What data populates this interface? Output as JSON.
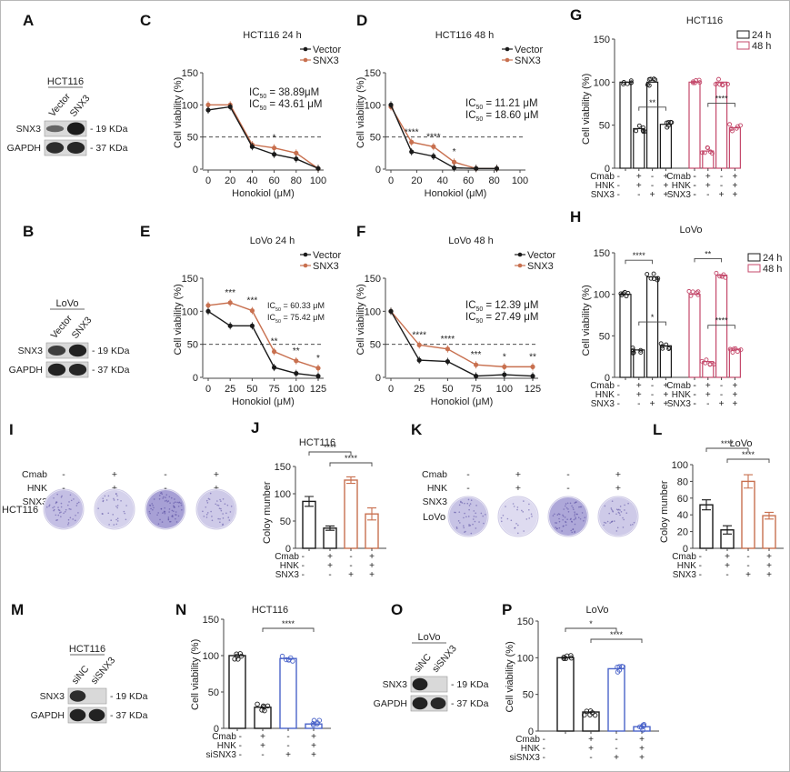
{
  "figure": {
    "colors": {
      "black": "#1a1a1a",
      "snx3_orange": "#c8704f",
      "h48_pink": "#c4496b",
      "si_blue": "#4a63c9",
      "band": "#1c1c1c",
      "blot_bg": "#d9d9d9",
      "colony_purple": "#7b71c0"
    },
    "panels": {
      "A": {
        "letter": "A",
        "cell": "HCT116",
        "lanes": [
          "Vector",
          "SNX3"
        ],
        "rows": [
          {
            "protein": "SNX3",
            "mw": "19 KDa",
            "intensity": [
              0.35,
              1.0
            ]
          },
          {
            "protein": "GAPDH",
            "mw": "37 KDa",
            "intensity": [
              0.85,
              0.9
            ]
          }
        ]
      },
      "B": {
        "letter": "B",
        "cell": "LoVo",
        "lanes": [
          "Vector",
          "SNX3"
        ],
        "rows": [
          {
            "protein": "SNX3",
            "mw": "19 KDa",
            "intensity": [
              0.7,
              0.95
            ]
          },
          {
            "protein": "GAPDH",
            "mw": "37 KDa",
            "intensity": [
              0.95,
              0.9
            ]
          }
        ]
      },
      "M": {
        "letter": "M",
        "cell": "HCT116",
        "lanes": [
          "siNC",
          "siSNX3"
        ],
        "rows": [
          {
            "protein": "SNX3",
            "mw": "19 KDa",
            "intensity": [
              0.85,
              0.05
            ]
          },
          {
            "protein": "GAPDH",
            "mw": "37 KDa",
            "intensity": [
              0.95,
              0.95
            ]
          }
        ]
      },
      "O": {
        "letter": "O",
        "cell": "LoVo",
        "lanes": [
          "siNC",
          "siSNX3"
        ],
        "rows": [
          {
            "protein": "SNX3",
            "mw": "19 KDa",
            "intensity": [
              0.95,
              0.05
            ]
          },
          {
            "protein": "GAPDH",
            "mw": "37 KDa",
            "intensity": [
              0.95,
              0.9
            ]
          }
        ]
      },
      "I": {
        "letter": "I",
        "cell": "HCT116",
        "conditions": [
          {
            "label": "Cmab",
            "signs": [
              "-",
              "+",
              "-",
              "+"
            ]
          },
          {
            "label": "HNK",
            "signs": [
              "-",
              "+",
              "-",
              "+"
            ]
          },
          {
            "label": "SNX3",
            "signs": [
              "-",
              "-",
              "+",
              "+"
            ]
          }
        ],
        "colony_density": [
          0.45,
          0.2,
          0.85,
          0.3
        ]
      },
      "K": {
        "letter": "K",
        "cell": "LoVo",
        "conditions": [
          {
            "label": "Cmab",
            "signs": [
              "-",
              "+",
              "-",
              "+"
            ]
          },
          {
            "label": "HNK",
            "signs": [
              "-",
              "+",
              "-",
              "+"
            ]
          },
          {
            "label": "SNX3",
            "signs": [
              "-",
              "-",
              "+",
              "+"
            ]
          }
        ],
        "colony_density": [
          0.4,
          0.08,
          0.75,
          0.3
        ]
      }
    }
  },
  "chart_data": [
    {
      "id": "C",
      "type": "line",
      "title": "HCT116 24 h",
      "xlabel": "Honokiol  (μM)",
      "ylabel": "Cell viability (%)",
      "xlim": [
        0,
        100
      ],
      "ylim": [
        0,
        150
      ],
      "xticks": [
        0,
        20,
        40,
        60,
        80,
        100
      ],
      "yticks": [
        0,
        50,
        100,
        150
      ],
      "reference_line": 50,
      "legend": [
        "Vector",
        "SNX3"
      ],
      "legend_position": "top-right",
      "x": [
        0,
        20,
        40,
        60,
        80,
        100
      ],
      "series": [
        {
          "name": "Vector",
          "values": [
            92,
            97,
            35,
            23,
            16,
            1
          ]
        },
        {
          "name": "SNX3",
          "values": [
            100,
            100,
            38,
            33,
            25,
            1
          ]
        }
      ],
      "annotations": [
        {
          "x": 60,
          "text": "*"
        }
      ],
      "ic50": [
        {
          "label": "IC",
          "sub": "50",
          "value": " = 38.89μM",
          "series": "Vector"
        },
        {
          "label": "IC",
          "sub": "50",
          "value": " = 43.61 μM",
          "series": "SNX3"
        }
      ]
    },
    {
      "id": "D",
      "type": "line",
      "title": "HCT116 48 h",
      "xlabel": "Honokiol  (μM)",
      "ylabel": "Cell viability (%)",
      "xlim": [
        0,
        100
      ],
      "ylim": [
        0,
        150
      ],
      "xticks": [
        0,
        20,
        40,
        60,
        80,
        100
      ],
      "yticks": [
        0,
        50,
        100,
        150
      ],
      "reference_line": 50,
      "legend": [
        "Vector",
        "SNX3"
      ],
      "legend_position": "top-right",
      "x": [
        0,
        16,
        33,
        49,
        66,
        82
      ],
      "series": [
        {
          "name": "Vector",
          "values": [
            100,
            27,
            20,
            2,
            1,
            1
          ]
        },
        {
          "name": "SNX3",
          "values": [
            97,
            42,
            35,
            11,
            1,
            1
          ]
        }
      ],
      "annotations": [
        {
          "x": 16,
          "text": "****"
        },
        {
          "x": 33,
          "text": "****"
        },
        {
          "x": 49,
          "text": "*"
        }
      ],
      "ic50": [
        {
          "label": "IC",
          "sub": "50",
          "value": " = 11.21 μM",
          "series": "Vector"
        },
        {
          "label": "IC",
          "sub": "50",
          "value": " = 18.60 μM",
          "series": "SNX3"
        }
      ]
    },
    {
      "id": "E",
      "type": "line",
      "title": "LoVo 24 h",
      "xlabel": "Honokiol  (μM)",
      "ylabel": "Cell viability (%)",
      "xlim": [
        0,
        125
      ],
      "ylim": [
        0,
        150
      ],
      "xticks": [
        0,
        25,
        50,
        75,
        100,
        125
      ],
      "yticks": [
        0,
        50,
        100,
        150
      ],
      "reference_line": 50,
      "legend": [
        "Vector",
        "SNX3"
      ],
      "legend_position": "top-right",
      "x": [
        0,
        25,
        50,
        75,
        100,
        125
      ],
      "series": [
        {
          "name": "Vector",
          "values": [
            100,
            78,
            78,
            15,
            6,
            2
          ]
        },
        {
          "name": "SNX3",
          "values": [
            109,
            113,
            101,
            39,
            25,
            14
          ]
        }
      ],
      "annotations": [
        {
          "x": 25,
          "text": "***"
        },
        {
          "x": 50,
          "text": "***"
        },
        {
          "x": 75,
          "text": "**"
        },
        {
          "x": 100,
          "text": "**"
        },
        {
          "x": 125,
          "text": "*"
        }
      ],
      "ic50": [
        {
          "label": "IC",
          "sub": "50",
          "value": " = 60.33 μM",
          "series": "Vector"
        },
        {
          "label": "IC",
          "sub": "50",
          "value": " = 75.42 μM",
          "series": "SNX3"
        }
      ]
    },
    {
      "id": "F",
      "type": "line",
      "title": "LoVo 48 h",
      "xlabel": "Honokiol  (μM)",
      "ylabel": "Cell viability (%)",
      "xlim": [
        0,
        125
      ],
      "ylim": [
        0,
        150
      ],
      "xticks": [
        0,
        25,
        50,
        75,
        100,
        125
      ],
      "yticks": [
        0,
        50,
        100,
        150
      ],
      "reference_line": 50,
      "legend": [
        "Vector",
        "SNX3"
      ],
      "legend_position": "top-right",
      "x": [
        0,
        25,
        50,
        75,
        100,
        125
      ],
      "series": [
        {
          "name": "Vector",
          "values": [
            100,
            26,
            24,
            2,
            4,
            2
          ]
        },
        {
          "name": "SNX3",
          "values": [
            100,
            49,
            43,
            19,
            16,
            16
          ]
        }
      ],
      "annotations": [
        {
          "x": 25,
          "text": "****"
        },
        {
          "x": 50,
          "text": "****"
        },
        {
          "x": 75,
          "text": "***"
        },
        {
          "x": 100,
          "text": "*"
        },
        {
          "x": 125,
          "text": "**"
        }
      ],
      "ic50": [
        {
          "label": "IC",
          "sub": "50",
          "value": " = 12.39 μM",
          "series": "Vector"
        },
        {
          "label": "IC",
          "sub": "50",
          "value": " = 27.49 μM",
          "series": "SNX3"
        }
      ]
    },
    {
      "id": "G",
      "type": "bar",
      "title": "HCT116",
      "ylabel": "Cell viability (%)",
      "ylim": [
        0,
        150
      ],
      "yticks": [
        0,
        50,
        100,
        150
      ],
      "legend": [
        "24 h",
        "48 h"
      ],
      "legend_position": "top-right",
      "groups": [
        {
          "name": "24 h",
          "values": [
            100,
            46,
            100,
            51
          ]
        },
        {
          "name": "48 h",
          "values": [
            100,
            20,
            100,
            47
          ]
        }
      ],
      "conditions": [
        {
          "label": "Cmab",
          "signs": [
            "-",
            "+",
            "-",
            "+"
          ]
        },
        {
          "label": "HNK",
          "signs": [
            "-",
            "+",
            "-",
            "+"
          ]
        },
        {
          "label": "SNX3",
          "signs": [
            "-",
            "-",
            "+",
            "+"
          ]
        }
      ],
      "significance": [
        {
          "group": 0,
          "from": 1,
          "to": 3,
          "text": "**"
        },
        {
          "group": 1,
          "from": 1,
          "to": 3,
          "text": "****"
        }
      ]
    },
    {
      "id": "H",
      "type": "bar",
      "title": "LoVo",
      "ylabel": "Cell viability (%)",
      "ylim": [
        0,
        150
      ],
      "yticks": [
        0,
        50,
        100,
        150
      ],
      "legend": [
        "24 h",
        "48 h"
      ],
      "legend_position": "top-right",
      "groups": [
        {
          "name": "24 h",
          "values": [
            100,
            33,
            121,
            38
          ]
        },
        {
          "name": "48 h",
          "values": [
            100,
            19,
            123,
            34
          ]
        }
      ],
      "conditions": [
        {
          "label": "Cmab",
          "signs": [
            "-",
            "+",
            "-",
            "+"
          ]
        },
        {
          "label": "HNK",
          "signs": [
            "-",
            "+",
            "-",
            "+"
          ]
        },
        {
          "label": "SNX3",
          "signs": [
            "-",
            "-",
            "+",
            "+"
          ]
        }
      ],
      "significance": [
        {
          "group": 0,
          "from": 0,
          "to": 2,
          "text": "****"
        },
        {
          "group": 0,
          "from": 1,
          "to": 3,
          "text": "*"
        },
        {
          "group": 1,
          "from": 0,
          "to": 2,
          "text": "**"
        },
        {
          "group": 1,
          "from": 1,
          "to": 3,
          "text": "****"
        }
      ]
    },
    {
      "id": "J",
      "type": "bar",
      "title": "HCT116",
      "ylabel": "Coloy munber",
      "ylim": [
        0,
        150
      ],
      "yticks": [
        0,
        50,
        100,
        150
      ],
      "values": [
        86,
        37,
        125,
        63
      ],
      "errors": [
        9,
        4,
        6,
        11
      ],
      "bar_colors": [
        "black",
        "black",
        "orange",
        "orange"
      ],
      "conditions": [
        {
          "label": "Cmab",
          "signs": [
            "-",
            "+",
            "-",
            "+"
          ]
        },
        {
          "label": "HNK",
          "signs": [
            "-",
            "+",
            "-",
            "+"
          ]
        },
        {
          "label": "SNX3",
          "signs": [
            "-",
            "-",
            "+",
            "+"
          ]
        }
      ],
      "significance": [
        {
          "from": 0,
          "to": 2,
          "text": "****"
        },
        {
          "from": 1,
          "to": 3,
          "text": "****"
        }
      ]
    },
    {
      "id": "L",
      "type": "bar",
      "title": "LoVo",
      "ylabel": "Coloy munber",
      "ylim": [
        0,
        100
      ],
      "yticks": [
        0,
        20,
        40,
        60,
        80,
        100
      ],
      "values": [
        52,
        22,
        80,
        39
      ],
      "errors": [
        6,
        5,
        8,
        4
      ],
      "bar_colors": [
        "black",
        "black",
        "orange",
        "orange"
      ],
      "conditions": [
        {
          "label": "Cmab",
          "signs": [
            "-",
            "+",
            "-",
            "+"
          ]
        },
        {
          "label": "HNK",
          "signs": [
            "-",
            "+",
            "-",
            "+"
          ]
        },
        {
          "label": "SNX3",
          "signs": [
            "-",
            "-",
            "+",
            "+"
          ]
        }
      ],
      "significance": [
        {
          "from": 0,
          "to": 2,
          "text": "****"
        },
        {
          "from": 1,
          "to": 3,
          "text": "****"
        }
      ]
    },
    {
      "id": "N",
      "type": "bar",
      "title": "HCT116",
      "ylabel": "Cell viability (%)",
      "ylim": [
        0,
        150
      ],
      "yticks": [
        0,
        50,
        100,
        150
      ],
      "values": [
        100,
        29,
        96,
        6
      ],
      "bar_colors": [
        "black",
        "black",
        "blue",
        "blue"
      ],
      "conditions": [
        {
          "label": "Cmab",
          "signs": [
            "-",
            "+",
            "-",
            "+"
          ]
        },
        {
          "label": "HNK",
          "signs": [
            "-",
            "+",
            "-",
            "+"
          ]
        },
        {
          "label": "siSNX3",
          "signs": [
            "-",
            "-",
            "+",
            "+"
          ]
        }
      ],
      "significance": [
        {
          "from": 1,
          "to": 3,
          "text": "****"
        }
      ]
    },
    {
      "id": "P",
      "type": "bar",
      "title": "LoVo",
      "ylabel": "Cell viability (%)",
      "ylim": [
        0,
        150
      ],
      "yticks": [
        0,
        50,
        100,
        150
      ],
      "values": [
        100,
        26,
        85,
        6
      ],
      "bar_colors": [
        "black",
        "black",
        "blue",
        "blue"
      ],
      "conditions": [
        {
          "label": "Cmab",
          "signs": [
            "-",
            "+",
            "-",
            "+"
          ]
        },
        {
          "label": "HNK",
          "signs": [
            "-",
            "+",
            "-",
            "+"
          ]
        },
        {
          "label": "siSNX3",
          "signs": [
            "-",
            "-",
            "+",
            "+"
          ]
        }
      ],
      "significance": [
        {
          "from": 0,
          "to": 2,
          "text": "*"
        },
        {
          "from": 1,
          "to": 3,
          "text": "****"
        }
      ]
    }
  ]
}
